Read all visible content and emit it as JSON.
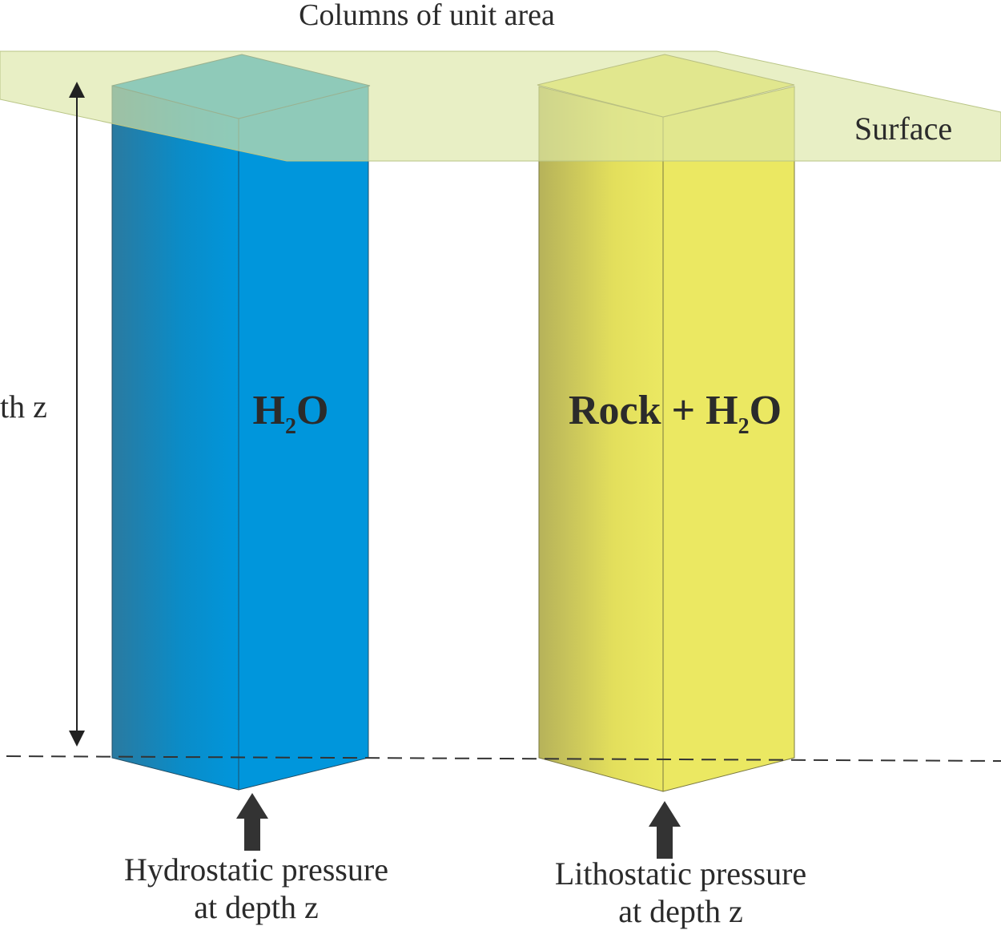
{
  "title": "Columns of unit area",
  "surface_label": "Surface",
  "depth_label": "th z",
  "columns": [
    {
      "label_main": "H",
      "label_sub": "2",
      "label_tail": "O",
      "caption_line1": "Hydrostatic pressure",
      "caption_line2": "at depth z",
      "color": "#0096dc"
    },
    {
      "label_prefix": "Rock + H",
      "label_sub": "2",
      "label_tail": "O",
      "caption_line1": "Lithostatic pressure",
      "caption_line2": "at depth z",
      "color": "#ebe862"
    }
  ],
  "colors": {
    "surface_plane": "#dbe6a6",
    "text": "#2b2b2b",
    "arrow": "#333333"
  }
}
